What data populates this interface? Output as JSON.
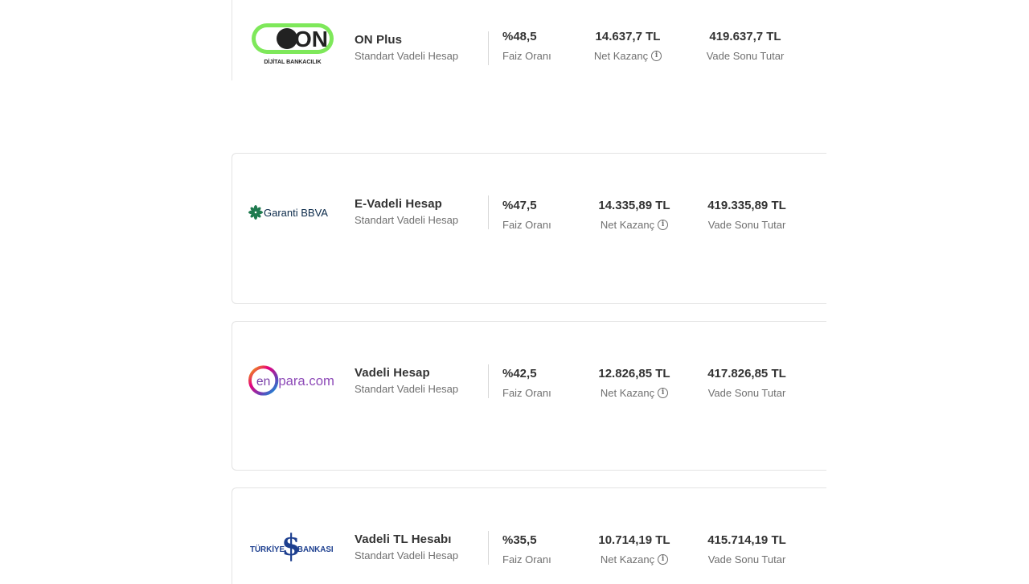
{
  "offers": [
    {
      "bank_logo_text": "ON",
      "bank_logo_subtext": "DİJİTAL BANKACILIK",
      "product_name": "ON Plus",
      "product_type": "Standart Vadeli Hesap",
      "rate_value": "%48,5",
      "rate_label": "Faiz Oranı",
      "net_value": "14.637,7 TL",
      "net_label": "Net Kazanç",
      "total_value": "419.637,7 TL",
      "total_label": "Vade Sonu Tutar"
    },
    {
      "bank_logo_text": "Garanti BBVA",
      "product_name": "E-Vadeli Hesap",
      "product_type": "Standart Vadeli Hesap",
      "rate_value": "%47,5",
      "rate_label": "Faiz Oranı",
      "net_value": "14.335,89 TL",
      "net_label": "Net Kazanç",
      "total_value": "419.335,89 TL",
      "total_label": "Vade Sonu Tutar"
    },
    {
      "bank_logo_text_1": "en",
      "bank_logo_text_2": "para.com",
      "product_name": "Vadeli Hesap",
      "product_type": "Standart Vadeli Hesap",
      "rate_value": "%42,5",
      "rate_label": "Faiz Oranı",
      "net_value": "12.826,85 TL",
      "net_label": "Net Kazanç",
      "total_value": "417.826,85 TL",
      "total_label": "Vade Sonu Tutar"
    },
    {
      "bank_logo_text_1": "TÜRKİYE",
      "bank_logo_text_2": "BANKASI",
      "product_name": "Vadeli TL Hesabı",
      "product_type": "Standart Vadeli Hesap",
      "rate_value": "%35,5",
      "rate_label": "Faiz Oranı",
      "net_value": "10.714,19 TL",
      "net_label": "Net Kazanç",
      "total_value": "415.714,19 TL",
      "total_label": "Vade Sonu Tutar"
    }
  ],
  "colors": {
    "on_green": "#7ee85a",
    "garanti_green": "#1f7a4f",
    "garanti_blue": "#0d4ea6",
    "enpara_purple": "#8e4bb8",
    "isbank_blue": "#1d3f8f"
  }
}
